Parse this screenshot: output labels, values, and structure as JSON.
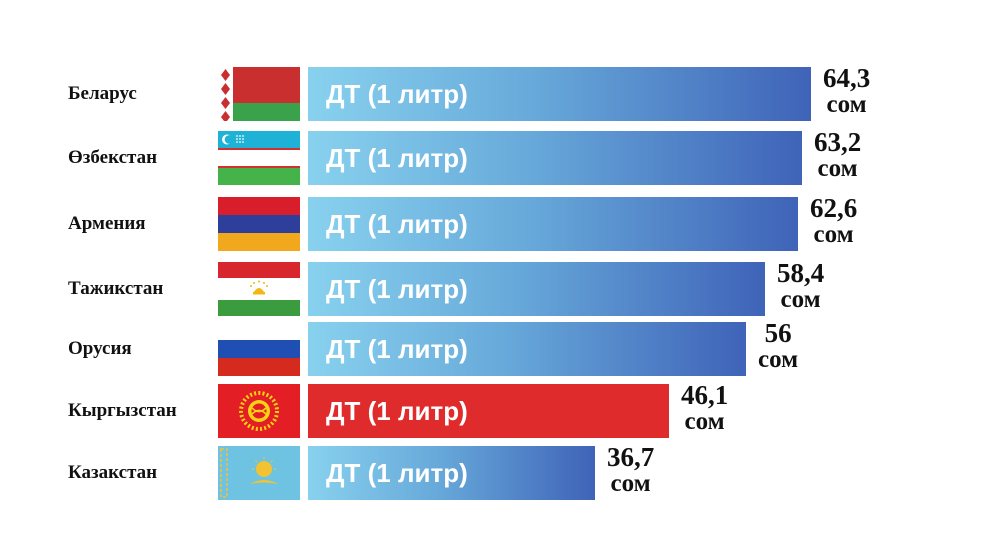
{
  "chart_data": {
    "type": "bar",
    "orientation": "horizontal",
    "bar_label": "ДТ (1 литр)",
    "unit": "сом",
    "categories": [
      "Беларус",
      "Өзбекстан",
      "Армения",
      "Тажикстан",
      "Орусия",
      "Кыргызстан",
      "Казакстан"
    ],
    "values": [
      64.3,
      63.2,
      62.6,
      58.4,
      56,
      46.1,
      36.7
    ],
    "value_labels": [
      "64,3",
      "63,2",
      "62,6",
      "58,4",
      "56",
      "46,1",
      "36,7"
    ],
    "flag_icons": [
      "belarus-flag-icon",
      "uzbekistan-flag-icon",
      "armenia-flag-icon",
      "tajikistan-flag-icon",
      "russia-flag-icon",
      "kyrgyzstan-flag-icon",
      "kazakhstan-flag-icon"
    ],
    "highlight_index": 5,
    "colors": {
      "bar_start": "#88d1ee",
      "bar_end": "#3f63b8",
      "highlight": "#df2b2b"
    },
    "xlim": [
      0,
      64.3
    ],
    "grid": false,
    "legend": "none"
  }
}
